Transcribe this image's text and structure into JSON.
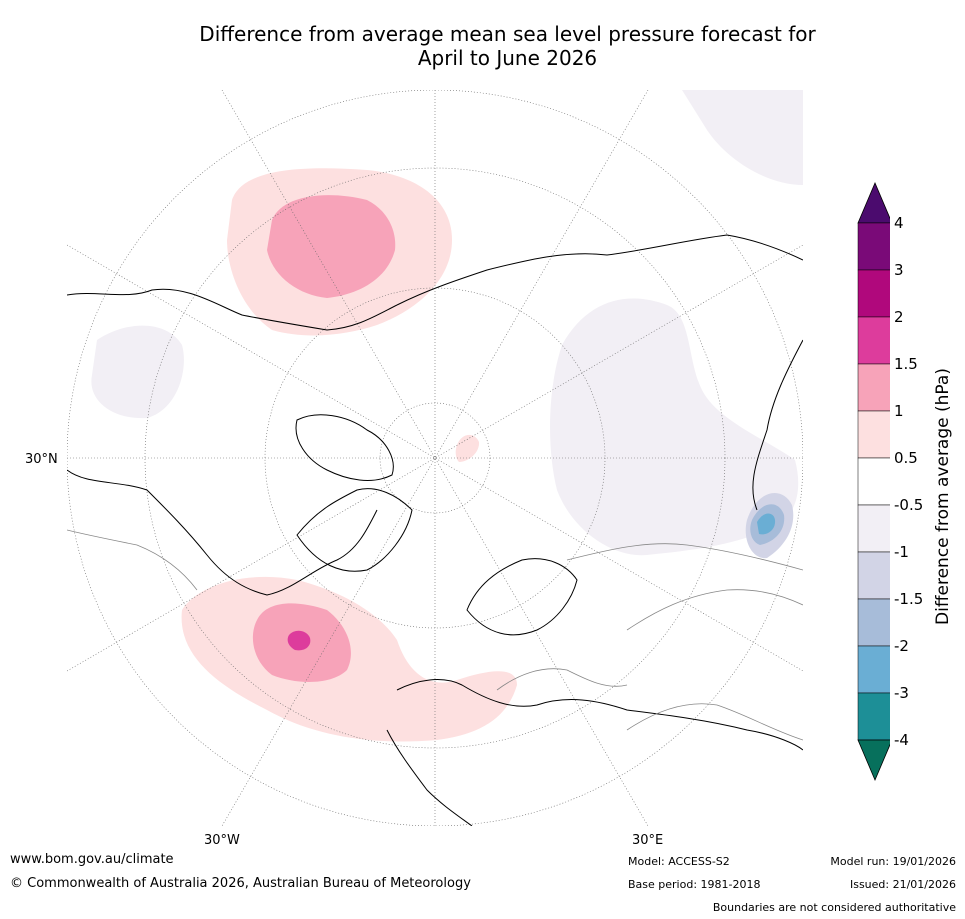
{
  "title": {
    "line1": "Difference from average mean sea level pressure forecast for",
    "line2": "April to June 2026"
  },
  "map": {
    "projection": "north-polar-stereographic",
    "graticule_labels": {
      "lat_30n": "30°N",
      "lon_30w": "30°W",
      "lon_30e": "30°E"
    },
    "features": [
      {
        "name": "positive-anomaly-north-pacific",
        "category": "1 to 1.5"
      },
      {
        "name": "positive-anomaly-north-atlantic",
        "category": "1.5 to 2"
      },
      {
        "name": "negative-anomaly-central-asia",
        "category": "-3 to -2"
      }
    ]
  },
  "colorbar": {
    "title": "Difference from average (hPa)",
    "tick_labels": [
      "4",
      "3",
      "2",
      "1.5",
      "1",
      "0.5",
      "-0.5",
      "-1",
      "-1.5",
      "-2",
      "-3",
      "-4"
    ],
    "colors": [
      "#4b0b6e",
      "#7a0a78",
      "#b0087c",
      "#dd3c9c",
      "#f7a3b9",
      "#fde0e0",
      "#ffffff",
      "#f2eff5",
      "#d2d4e6",
      "#a7bcd9",
      "#6aaed4",
      "#1d8f97",
      "#07705c"
    ]
  },
  "footer": {
    "website": "www.bom.gov.au/climate",
    "copyright": "© Commonwealth of Australia 2026, Australian Bureau of Meteorology",
    "model": "Model: ACCESS-S2",
    "base_period": "Base period: 1981-2018",
    "model_run": "Model run: 19/01/2026",
    "issued": "Issued: 21/01/2026",
    "disclaimer": "Boundaries are not considered authoritative"
  }
}
